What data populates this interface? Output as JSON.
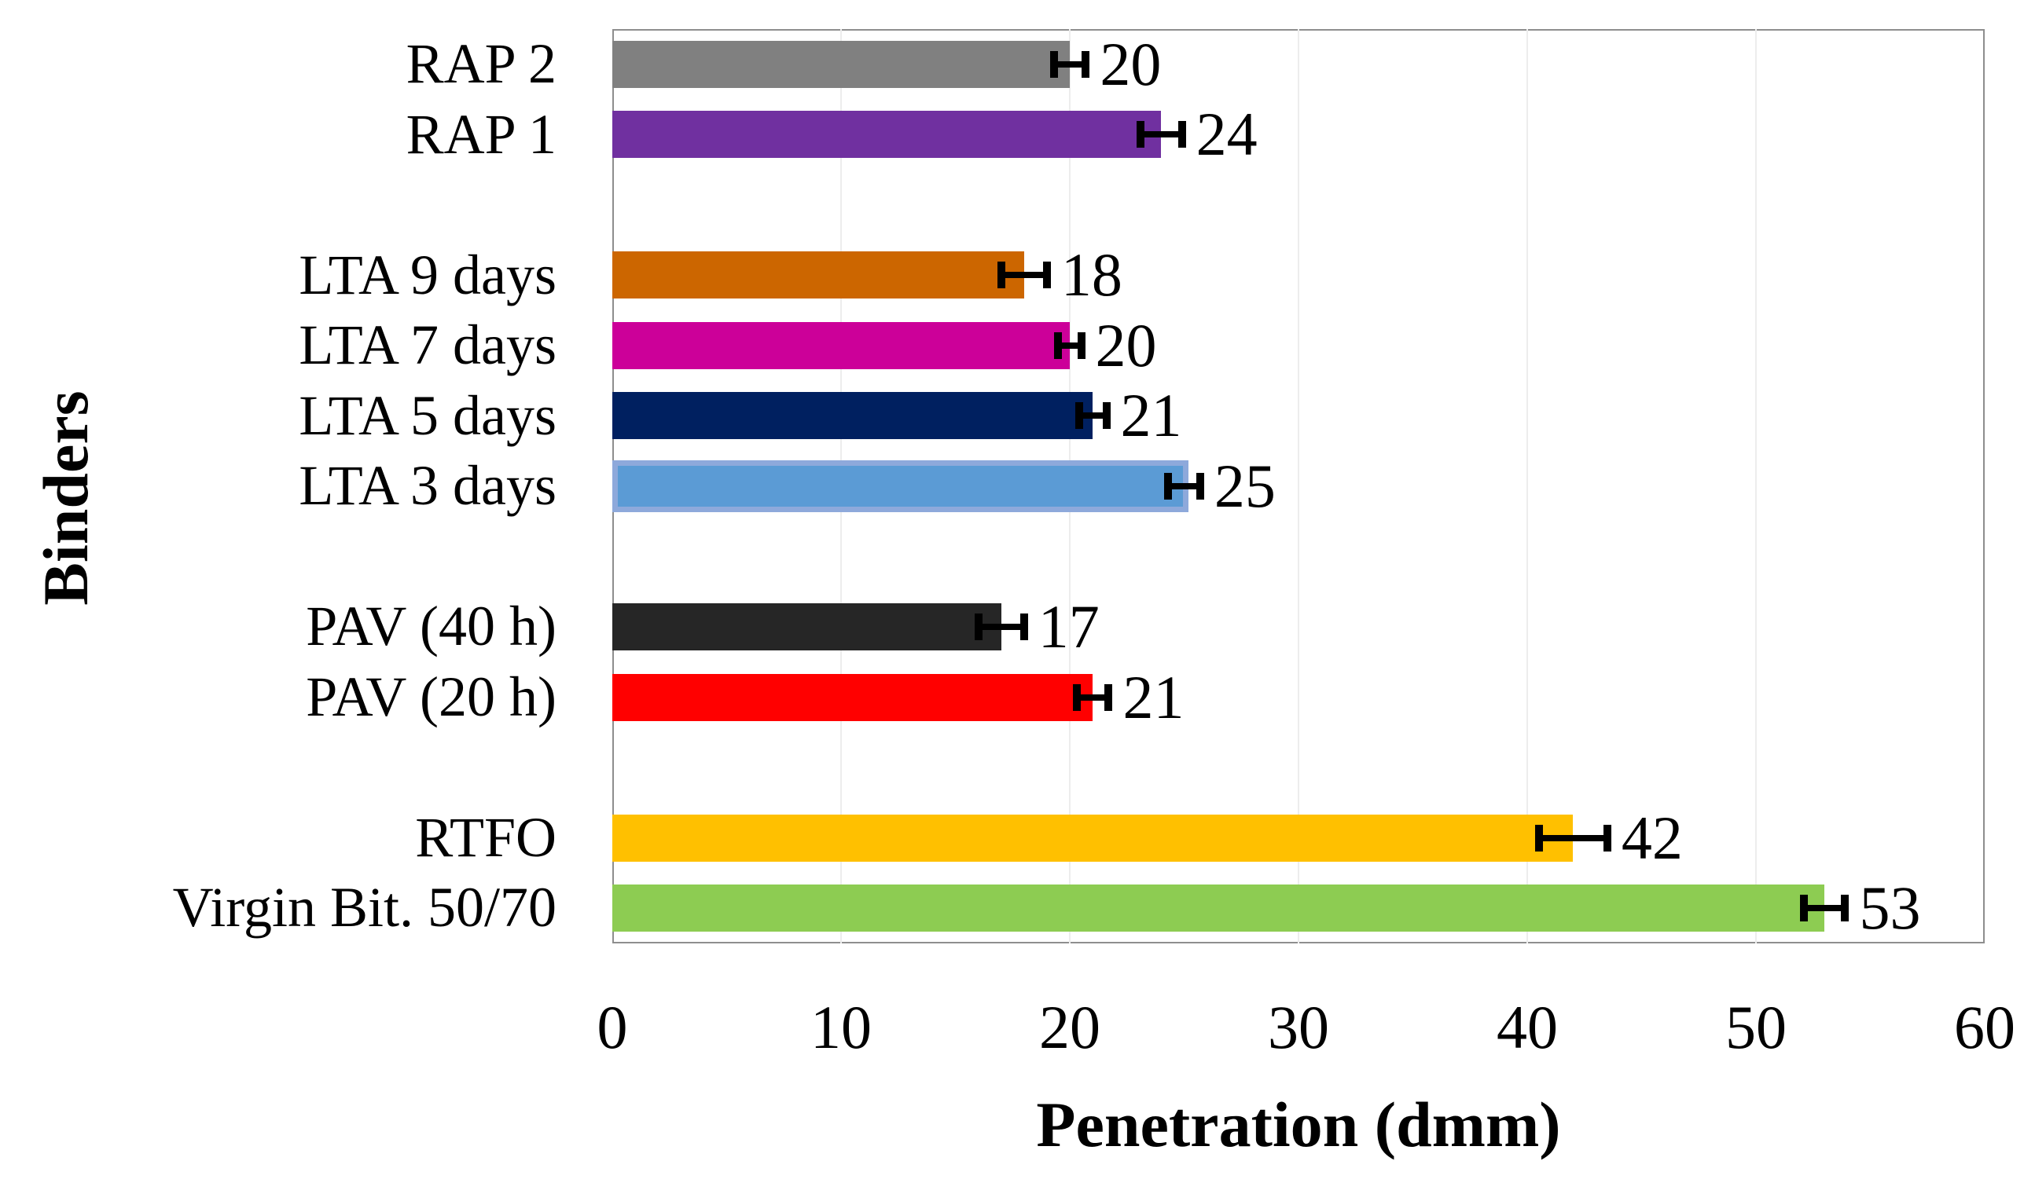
{
  "chart_data": {
    "type": "bar",
    "orientation": "horizontal",
    "title": "",
    "xlabel": "Penetration (dmm)",
    "ylabel": "Binders",
    "xlim": [
      0,
      60
    ],
    "xticks": [
      0,
      10,
      20,
      30,
      40,
      50,
      60
    ],
    "grid": "vertical light-gray gridlines at each major tick",
    "legend": "none",
    "error_bars": "horizontal, black, capped, one per bar",
    "rows": [
      {
        "label": "RAP 2",
        "value": 20,
        "error": 0.7,
        "color": "#808080"
      },
      {
        "label": "RAP 1",
        "value": 24,
        "error": 0.9,
        "color": "#7030A0"
      },
      {
        "spacer": true
      },
      {
        "label": "LTA 9 days",
        "value": 18,
        "error": 1.0,
        "color": "#CC6600"
      },
      {
        "label": "LTA 7 days",
        "value": 20,
        "error": 0.5,
        "color": "#CC0099"
      },
      {
        "label": "LTA 5 days",
        "value": 21,
        "error": 0.6,
        "color": "#002060"
      },
      {
        "label": "LTA 3 days",
        "value": 25,
        "error": 0.7,
        "color": "#5B9BD5",
        "border_color": "#8EA9DB"
      },
      {
        "spacer": true
      },
      {
        "label": "PAV (40 h)",
        "value": 17,
        "error": 1.0,
        "color": "#262626"
      },
      {
        "label": "PAV (20 h)",
        "value": 21,
        "error": 0.7,
        "color": "#FF0000"
      },
      {
        "spacer": true
      },
      {
        "label": "RTFO",
        "value": 42,
        "error": 1.5,
        "color": "#FFC000"
      },
      {
        "label": "Virgin Bit. 50/70",
        "value": 53,
        "error": 0.9,
        "color": "#8DCC52"
      }
    ],
    "colors": {
      "axis_frame": "#8E8E8E",
      "gridline": "#EDEDED",
      "text": "#000000",
      "error_bar": "#000000"
    }
  }
}
